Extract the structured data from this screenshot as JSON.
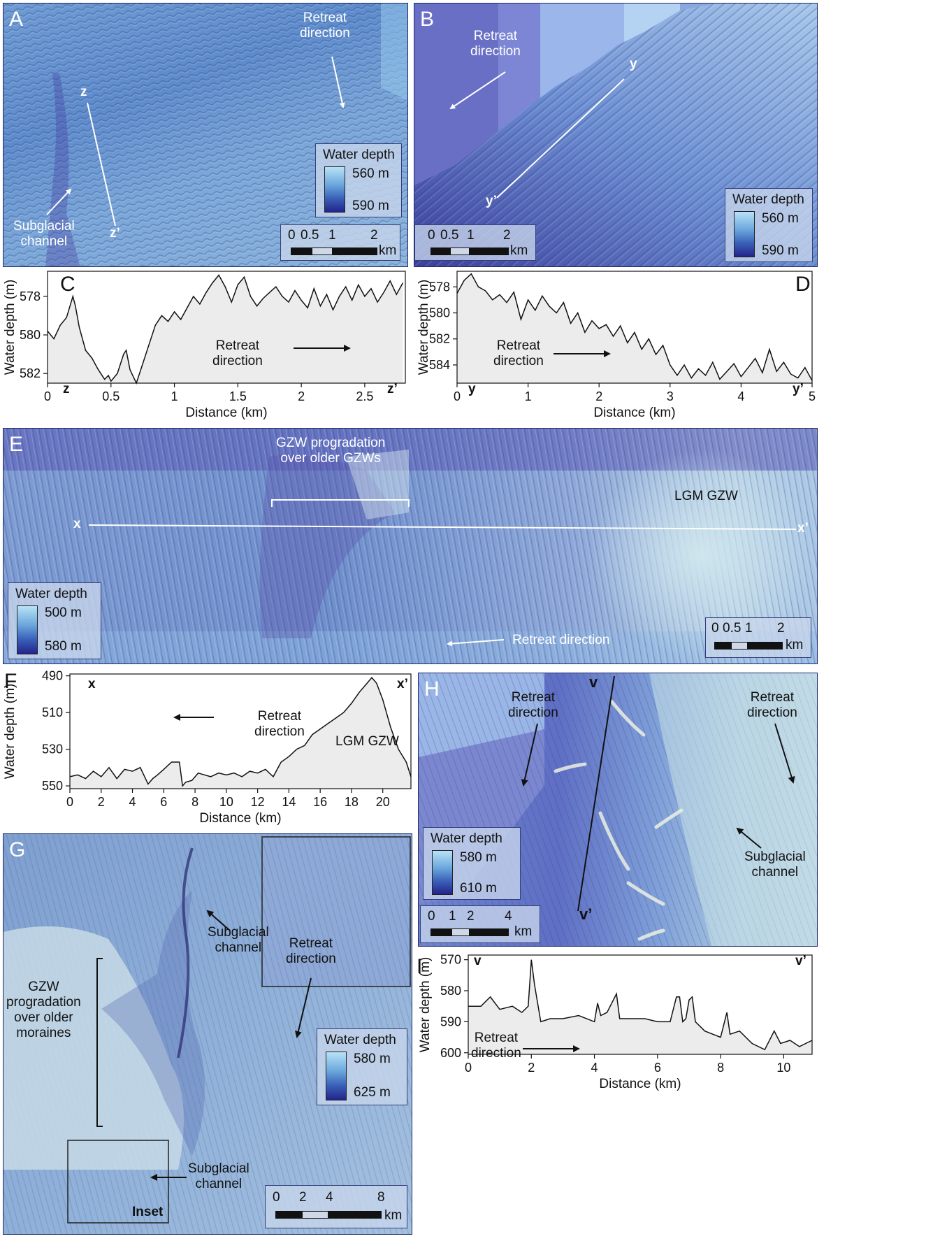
{
  "panels": {
    "A": {
      "letter": "A",
      "retreat_label_line1": "Retreat",
      "retreat_label_line2": "direction",
      "profile_start": "z",
      "profile_end": "z’",
      "channel_line1": "Subglacial",
      "channel_line2": "channel",
      "legend": {
        "title": "Water depth",
        "min": "560 m",
        "max": "590 m"
      },
      "scale": {
        "ticks": [
          "0",
          "0.5",
          "1",
          "2"
        ],
        "unit": "km"
      }
    },
    "B": {
      "letter": "B",
      "retreat_label_line1": "Retreat",
      "retreat_label_line2": "direction",
      "profile_start": "y",
      "profile_end": "y’",
      "legend": {
        "title": "Water depth",
        "min": "560 m",
        "max": "590 m"
      },
      "scale": {
        "ticks": [
          "0",
          "0.5",
          "1",
          "2"
        ],
        "unit": "km"
      }
    },
    "C": {
      "letter": "C",
      "start_label": "z",
      "end_label": "z’",
      "retreat_line1": "Retreat",
      "retreat_line2": "direction"
    },
    "D": {
      "letter": "D",
      "start_label": "y",
      "end_label": "y’",
      "retreat_line1": "Retreat",
      "retreat_line2": "direction"
    },
    "E": {
      "letter": "E",
      "gzw_line1": "GZW progradation",
      "gzw_line2": "over older GZWs",
      "lgm_label": "LGM GZW",
      "profile_start": "x",
      "profile_end": "x’",
      "retreat_label": "Retreat direction",
      "legend": {
        "title": "Water depth",
        "min": "500 m",
        "max": "580 m"
      },
      "scale": {
        "ticks": [
          "0",
          "0.5",
          "1",
          "2"
        ],
        "unit": "km"
      }
    },
    "F": {
      "letter": "F",
      "start_label": "x",
      "end_label": "x’",
      "retreat_line1": "Retreat",
      "retreat_line2": "direction",
      "lgm_label": "LGM GZW"
    },
    "G": {
      "letter": "G",
      "gzw_lines": [
        "GZW",
        "progradation",
        "over older",
        "moraines"
      ],
      "channel1_line1": "Subglacial",
      "channel1_line2": "channel",
      "retreat_line1": "Retreat",
      "retreat_line2": "direction",
      "channel2_line1": "Subglacial",
      "channel2_line2": "channel",
      "inset_label": "Inset",
      "legend": {
        "title": "Water depth",
        "min": "580 m",
        "max": "625 m"
      },
      "scale": {
        "ticks": [
          "0",
          "2",
          "4",
          "8"
        ],
        "unit": "km"
      }
    },
    "H": {
      "letter": "H",
      "retreat1_line1": "Retreat",
      "retreat1_line2": "direction",
      "retreat2_line1": "Retreat",
      "retreat2_line2": "direction",
      "profile_start": "v",
      "profile_end": "v’",
      "channel_line1": "Subglacial",
      "channel_line2": "channel",
      "legend": {
        "title": "Water depth",
        "min": "580 m",
        "max": "610 m"
      },
      "scale": {
        "ticks": [
          "0",
          "1",
          "2",
          "4"
        ],
        "unit": "km"
      }
    },
    "I": {
      "letter": "I",
      "start_label": "v",
      "end_label": "v’",
      "retreat_line1": "Retreat",
      "retreat_line2": "direction"
    }
  },
  "chart_data": [
    {
      "id": "C",
      "type": "area",
      "xlabel": "Distance (km)",
      "ylabel": "Water depth (m)",
      "xlim": [
        0,
        2.82
      ],
      "ylim": [
        582.5,
        576.7
      ],
      "y_inverted": true,
      "xticks": [
        0,
        0.5,
        1,
        1.5,
        2,
        2.5
      ],
      "xtick_labels": [
        "0",
        "0.5",
        "1",
        "1.5",
        "2",
        "2.5"
      ],
      "yticks": [
        578,
        580,
        582
      ],
      "ytick_labels": [
        "578",
        "580",
        "582"
      ],
      "x": [
        0,
        0.05,
        0.1,
        0.15,
        0.2,
        0.22,
        0.25,
        0.3,
        0.35,
        0.4,
        0.45,
        0.48,
        0.5,
        0.55,
        0.6,
        0.62,
        0.65,
        0.7,
        0.75,
        0.8,
        0.85,
        0.9,
        0.95,
        1.0,
        1.05,
        1.1,
        1.15,
        1.2,
        1.25,
        1.3,
        1.35,
        1.4,
        1.45,
        1.5,
        1.55,
        1.6,
        1.65,
        1.7,
        1.75,
        1.8,
        1.85,
        1.9,
        1.95,
        2.0,
        2.05,
        2.1,
        2.15,
        2.2,
        2.25,
        2.3,
        2.35,
        2.4,
        2.45,
        2.5,
        2.55,
        2.6,
        2.65,
        2.7,
        2.75,
        2.8
      ],
      "y": [
        579.8,
        580.2,
        579.5,
        579.1,
        578.0,
        578.5,
        579.6,
        580.8,
        581.2,
        581.8,
        582.3,
        582.1,
        582.4,
        582.0,
        581.0,
        580.8,
        581.8,
        582.5,
        581.5,
        580.5,
        579.5,
        579.0,
        579.3,
        578.8,
        579.2,
        578.6,
        578.0,
        578.4,
        577.8,
        577.3,
        576.9,
        577.5,
        578.3,
        577.4,
        577.0,
        578.0,
        578.5,
        578.1,
        577.8,
        577.5,
        578.0,
        578.3,
        577.7,
        578.2,
        578.6,
        577.6,
        578.5,
        577.9,
        578.7,
        578.0,
        577.5,
        578.2,
        577.4,
        578.0,
        577.6,
        578.3,
        577.8,
        577.2,
        577.9,
        577.3
      ]
    },
    {
      "id": "D",
      "type": "area",
      "xlabel": "Distance (km)",
      "ylabel": "Water depth (m)",
      "xlim": [
        0,
        5
      ],
      "ylim": [
        585.4,
        576.8
      ],
      "y_inverted": true,
      "xticks": [
        0,
        1,
        2,
        3,
        4,
        5
      ],
      "xtick_labels": [
        "0",
        "1",
        "2",
        "3",
        "4",
        "5"
      ],
      "yticks": [
        578,
        580,
        582,
        584
      ],
      "ytick_labels": [
        "578",
        "580",
        "582",
        "584"
      ],
      "x": [
        0,
        0.1,
        0.2,
        0.3,
        0.4,
        0.5,
        0.6,
        0.7,
        0.8,
        0.9,
        1.0,
        1.1,
        1.2,
        1.3,
        1.4,
        1.5,
        1.6,
        1.7,
        1.8,
        1.9,
        2.0,
        2.1,
        2.2,
        2.3,
        2.4,
        2.5,
        2.6,
        2.7,
        2.8,
        2.9,
        3.0,
        3.1,
        3.2,
        3.3,
        3.4,
        3.5,
        3.6,
        3.7,
        3.8,
        3.9,
        4.0,
        4.1,
        4.2,
        4.3,
        4.4,
        4.5,
        4.6,
        4.7,
        4.8,
        4.9,
        5.0
      ],
      "y": [
        578.5,
        577.5,
        577.0,
        578.0,
        578.3,
        579.0,
        578.6,
        579.2,
        578.4,
        580.5,
        579.0,
        579.8,
        578.7,
        579.5,
        580.0,
        579.2,
        580.8,
        580.0,
        581.5,
        580.6,
        581.2,
        580.9,
        581.8,
        581.0,
        582.3,
        581.5,
        582.8,
        582.0,
        583.2,
        582.5,
        584.0,
        584.8,
        584.0,
        585.0,
        584.3,
        584.8,
        583.8,
        585.1,
        584.5,
        583.9,
        584.9,
        584.2,
        583.5,
        584.6,
        582.8,
        584.5,
        583.8,
        584.7,
        585.0,
        584.2,
        585.2
      ]
    },
    {
      "id": "F",
      "type": "area",
      "xlabel": "Distance (km)",
      "ylabel": "Water depth (m)",
      "xlim": [
        0,
        21.8
      ],
      "ylim": [
        551.5,
        489
      ],
      "y_inverted": true,
      "xticks": [
        0,
        2,
        4,
        6,
        8,
        10,
        12,
        14,
        16,
        18,
        20
      ],
      "xtick_labels": [
        "0",
        "2",
        "4",
        "6",
        "8",
        "10",
        "12",
        "14",
        "16",
        "18",
        "20"
      ],
      "yticks": [
        490,
        510,
        530,
        550
      ],
      "ytick_labels": [
        "490",
        "510",
        "530",
        "550"
      ],
      "x": [
        0,
        0.5,
        1,
        1.5,
        2,
        2.5,
        3,
        3.5,
        4,
        4.5,
        5,
        5.3,
        5.6,
        6,
        6.5,
        7,
        7.2,
        7.4,
        7.8,
        8.2,
        8.6,
        9,
        9.5,
        10,
        10.5,
        11,
        11.5,
        12,
        12.5,
        13,
        13.5,
        14,
        14.5,
        15,
        15.5,
        16,
        16.5,
        17,
        17.5,
        18,
        18.5,
        19,
        19.3,
        19.6,
        20,
        20.5,
        21,
        21.5,
        21.8
      ],
      "y": [
        545,
        544,
        546,
        542,
        545,
        540,
        546,
        541,
        542,
        540,
        549,
        546,
        544,
        541,
        537,
        537,
        550,
        548,
        547,
        543,
        544,
        545,
        543,
        544,
        543,
        545,
        542,
        543,
        541,
        545,
        537,
        534,
        530,
        528,
        522,
        519,
        516,
        513,
        510,
        505,
        499,
        494,
        491,
        494,
        503,
        518,
        530,
        537,
        545
      ]
    },
    {
      "id": "I",
      "type": "area",
      "xlabel": "Distance (km)",
      "ylabel": "Water depth (m)",
      "xlim": [
        0,
        10.9
      ],
      "ylim": [
        600.5,
        568.5
      ],
      "y_inverted": true,
      "xticks": [
        0,
        2,
        4,
        6,
        8,
        10
      ],
      "xtick_labels": [
        "0",
        "2",
        "4",
        "6",
        "8",
        "10"
      ],
      "yticks": [
        570,
        580,
        590,
        600
      ],
      "ytick_labels": [
        "570",
        "580",
        "590",
        "600"
      ],
      "x": [
        0,
        0.4,
        0.7,
        1.0,
        1.4,
        1.7,
        1.9,
        2.0,
        2.1,
        2.3,
        2.6,
        3.0,
        3.5,
        4.0,
        4.1,
        4.2,
        4.4,
        4.6,
        4.7,
        4.8,
        5.2,
        5.6,
        6.0,
        6.4,
        6.6,
        6.7,
        6.8,
        6.9,
        7.0,
        7.1,
        7.2,
        7.5,
        8.0,
        8.2,
        8.3,
        8.6,
        9.0,
        9.4,
        9.7,
        9.9,
        10.2,
        10.5,
        10.9
      ],
      "y": [
        585,
        585,
        582,
        586,
        585,
        587,
        585,
        570,
        578,
        590,
        589,
        589,
        588,
        590,
        584,
        588,
        587,
        583,
        581,
        589,
        589,
        589,
        590,
        590,
        582,
        582,
        590,
        589,
        583,
        582,
        590,
        593,
        595,
        587,
        594,
        593,
        597,
        599,
        593,
        597,
        596,
        598,
        596
      ]
    }
  ]
}
